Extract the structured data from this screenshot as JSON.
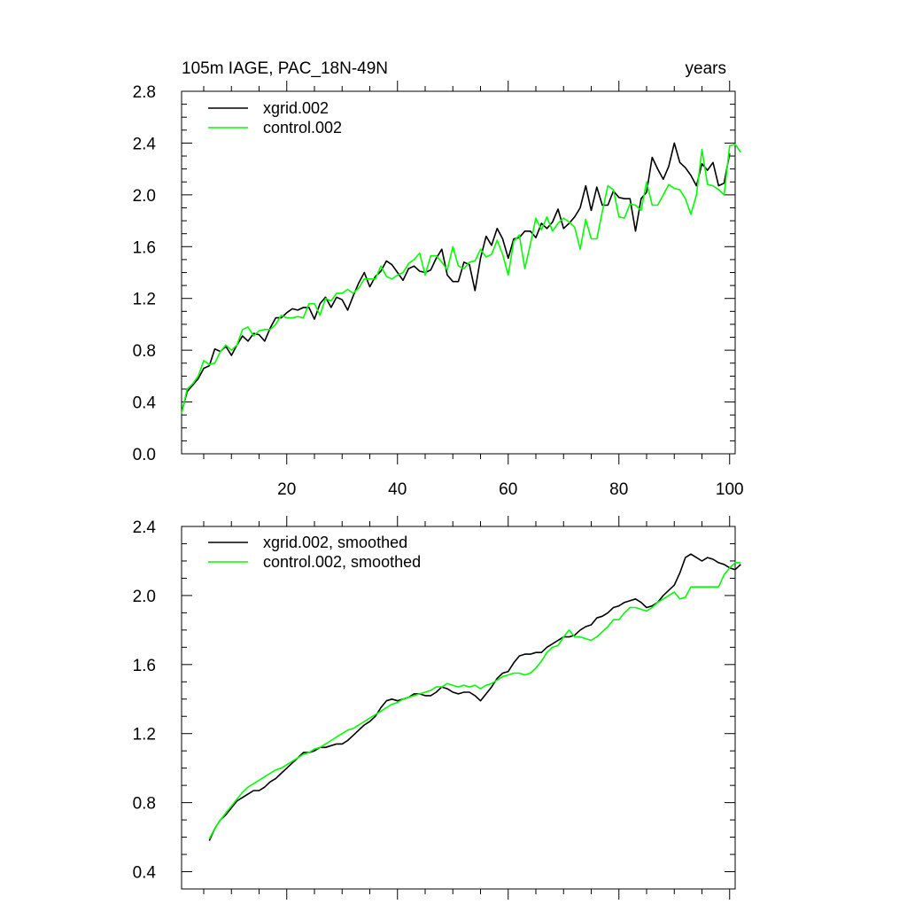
{
  "chart_data": [
    {
      "type": "line",
      "title_left": "105m IAGE, PAC_18N-49N",
      "title_right": "years",
      "xlabel": "",
      "ylabel": "",
      "xlim": [
        1,
        101
      ],
      "ylim": [
        0.0,
        2.8
      ],
      "x_ticks": [
        20,
        40,
        60,
        80,
        100
      ],
      "x_tick_labels": [
        "20",
        "40",
        "60",
        "80",
        "100"
      ],
      "y_ticks": [
        0.0,
        0.4,
        0.8,
        1.2,
        1.6,
        2.0,
        2.4,
        2.8
      ],
      "y_tick_labels": [
        "0.0",
        "0.4",
        "0.8",
        "1.2",
        "1.6",
        "2.0",
        "2.4",
        "2.8"
      ],
      "legend_position": "top-left",
      "series": [
        {
          "name": "xgrid.002",
          "color": "#000000",
          "x_start": 1,
          "values": [
            0.32,
            0.48,
            0.53,
            0.58,
            0.66,
            0.68,
            0.81,
            0.79,
            0.83,
            0.76,
            0.84,
            0.91,
            0.87,
            0.93,
            0.92,
            0.87,
            0.97,
            1.05,
            1.05,
            1.09,
            1.12,
            1.11,
            1.13,
            1.13,
            1.04,
            1.16,
            1.21,
            1.13,
            1.21,
            1.19,
            1.11,
            1.22,
            1.32,
            1.4,
            1.29,
            1.37,
            1.41,
            1.49,
            1.46,
            1.4,
            1.34,
            1.43,
            1.45,
            1.41,
            1.4,
            1.42,
            1.51,
            1.58,
            1.38,
            1.33,
            1.33,
            1.48,
            1.46,
            1.26,
            1.51,
            1.68,
            1.61,
            1.74,
            1.66,
            1.51,
            1.66,
            1.67,
            1.72,
            1.72,
            1.67,
            1.78,
            1.74,
            1.79,
            1.89,
            1.74,
            1.78,
            1.83,
            1.9,
            2.07,
            1.88,
            2.06,
            1.92,
            1.92,
            2.03,
            1.98,
            1.97,
            1.97,
            1.72,
            1.97,
            2.02,
            2.29,
            2.2,
            2.12,
            2.22,
            2.4,
            2.25,
            2.21,
            2.15,
            2.07,
            2.24,
            2.19,
            2.25,
            2.07,
            2.09,
            2.32
          ]
        },
        {
          "name": "control.002",
          "color": "#00ff00",
          "x_start": 1,
          "values": [
            0.31,
            0.5,
            0.54,
            0.6,
            0.72,
            0.69,
            0.7,
            0.79,
            0.84,
            0.8,
            0.84,
            0.96,
            0.98,
            0.91,
            0.95,
            0.96,
            0.96,
            1.0,
            1.07,
            1.05,
            1.05,
            1.06,
            1.05,
            1.16,
            1.16,
            1.07,
            1.2,
            1.18,
            1.24,
            1.24,
            1.27,
            1.24,
            1.28,
            1.35,
            1.35,
            1.35,
            1.45,
            1.37,
            1.35,
            1.38,
            1.4,
            1.47,
            1.5,
            1.55,
            1.38,
            1.53,
            1.53,
            1.48,
            1.42,
            1.6,
            1.45,
            1.43,
            1.48,
            1.49,
            1.58,
            1.52,
            1.54,
            1.65,
            1.54,
            1.38,
            1.64,
            1.69,
            1.43,
            1.62,
            1.82,
            1.73,
            1.83,
            1.72,
            1.78,
            1.82,
            1.79,
            1.75,
            1.58,
            1.81,
            1.66,
            1.66,
            1.87,
            2.07,
            2.04,
            1.83,
            1.82,
            1.93,
            1.92,
            1.88,
            2.1,
            1.92,
            1.92,
            2.0,
            2.08,
            2.05,
            2.04,
            1.97,
            1.85,
            2.0,
            2.35,
            2.08,
            2.07,
            2.04,
            2.0,
            2.38,
            2.39,
            2.33
          ]
        }
      ]
    },
    {
      "type": "line",
      "title_left": "",
      "title_right": "",
      "xlabel": "",
      "ylabel": "",
      "xlim": [
        1,
        101
      ],
      "ylim": [
        0.3,
        2.4
      ],
      "x_ticks": [
        20,
        40,
        60,
        80,
        100
      ],
      "x_tick_labels": [],
      "y_ticks": [
        0.4,
        0.8,
        1.2,
        1.6,
        2.0,
        2.4
      ],
      "y_tick_labels": [
        "0.4",
        "0.8",
        "1.2",
        "1.6",
        "2.0",
        "2.4"
      ],
      "legend_position": "top-left",
      "series": [
        {
          "name": "xgrid.002, smoothed",
          "color": "#000000",
          "x_start": 6,
          "values": [
            0.58,
            0.65,
            0.7,
            0.73,
            0.77,
            0.81,
            0.83,
            0.85,
            0.87,
            0.87,
            0.89,
            0.92,
            0.94,
            0.97,
            1.0,
            1.03,
            1.06,
            1.09,
            1.09,
            1.1,
            1.12,
            1.12,
            1.13,
            1.14,
            1.14,
            1.16,
            1.19,
            1.22,
            1.25,
            1.27,
            1.3,
            1.35,
            1.39,
            1.4,
            1.39,
            1.4,
            1.41,
            1.43,
            1.43,
            1.42,
            1.42,
            1.44,
            1.47,
            1.46,
            1.44,
            1.43,
            1.44,
            1.44,
            1.42,
            1.39,
            1.43,
            1.47,
            1.52,
            1.55,
            1.56,
            1.61,
            1.65,
            1.66,
            1.66,
            1.67,
            1.67,
            1.7,
            1.72,
            1.74,
            1.76,
            1.76,
            1.77,
            1.8,
            1.82,
            1.83,
            1.87,
            1.88,
            1.9,
            1.93,
            1.94,
            1.96,
            1.97,
            1.98,
            1.96,
            1.93,
            1.94,
            1.96,
            2.0,
            2.03,
            2.06,
            2.13,
            2.22,
            2.24,
            2.22,
            2.2,
            2.22,
            2.21,
            2.19,
            2.18,
            2.16,
            2.15,
            2.18
          ]
        },
        {
          "name": "control.002, smoothed",
          "color": "#00ff00",
          "x_start": 6,
          "values": [
            0.59,
            0.65,
            0.7,
            0.74,
            0.78,
            0.82,
            0.86,
            0.89,
            0.91,
            0.93,
            0.95,
            0.97,
            0.99,
            1.0,
            1.02,
            1.04,
            1.06,
            1.08,
            1.09,
            1.11,
            1.12,
            1.14,
            1.16,
            1.18,
            1.2,
            1.22,
            1.23,
            1.25,
            1.27,
            1.29,
            1.31,
            1.33,
            1.35,
            1.37,
            1.38,
            1.4,
            1.41,
            1.42,
            1.43,
            1.44,
            1.45,
            1.47,
            1.47,
            1.49,
            1.48,
            1.47,
            1.48,
            1.47,
            1.48,
            1.46,
            1.48,
            1.49,
            1.51,
            1.53,
            1.54,
            1.55,
            1.55,
            1.54,
            1.55,
            1.58,
            1.62,
            1.67,
            1.7,
            1.71,
            1.76,
            1.8,
            1.76,
            1.76,
            1.75,
            1.74,
            1.76,
            1.79,
            1.82,
            1.86,
            1.86,
            1.9,
            1.93,
            1.93,
            1.92,
            1.91,
            1.93,
            1.96,
            1.98,
            2.0,
            2.02,
            1.98,
            1.99,
            2.05,
            2.05,
            2.05,
            2.05,
            2.05,
            2.05,
            2.12,
            2.16,
            2.19,
            2.19
          ]
        }
      ]
    }
  ]
}
